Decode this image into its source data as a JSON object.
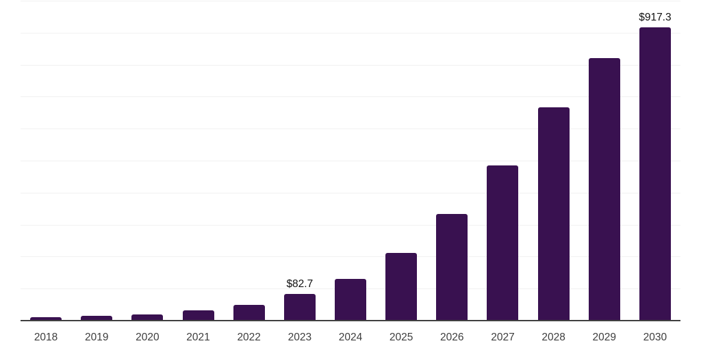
{
  "chart_data": {
    "type": "bar",
    "title": "",
    "xlabel": "",
    "ylabel": "",
    "categories": [
      "2018",
      "2019",
      "2020",
      "2021",
      "2022",
      "2023",
      "2024",
      "2025",
      "2026",
      "2027",
      "2028",
      "2029",
      "2030"
    ],
    "values": [
      10,
      14,
      19,
      31,
      50,
      82.7,
      130,
      212,
      334,
      485,
      666,
      820,
      917.3
    ],
    "annotations": [
      {
        "category": "2023",
        "text": "$82.7"
      },
      {
        "category": "2030",
        "text": "$917.3"
      }
    ],
    "ylim": [
      0,
      1000
    ],
    "gridline_step": 100,
    "grid": true,
    "legend": false,
    "colors": {
      "bar": "#391150",
      "gridline": "#f1f1f1",
      "axis_line": "#404040",
      "tick_label": "#3d3d3d",
      "data_label": "#111111",
      "background": "#ffffff"
    }
  }
}
